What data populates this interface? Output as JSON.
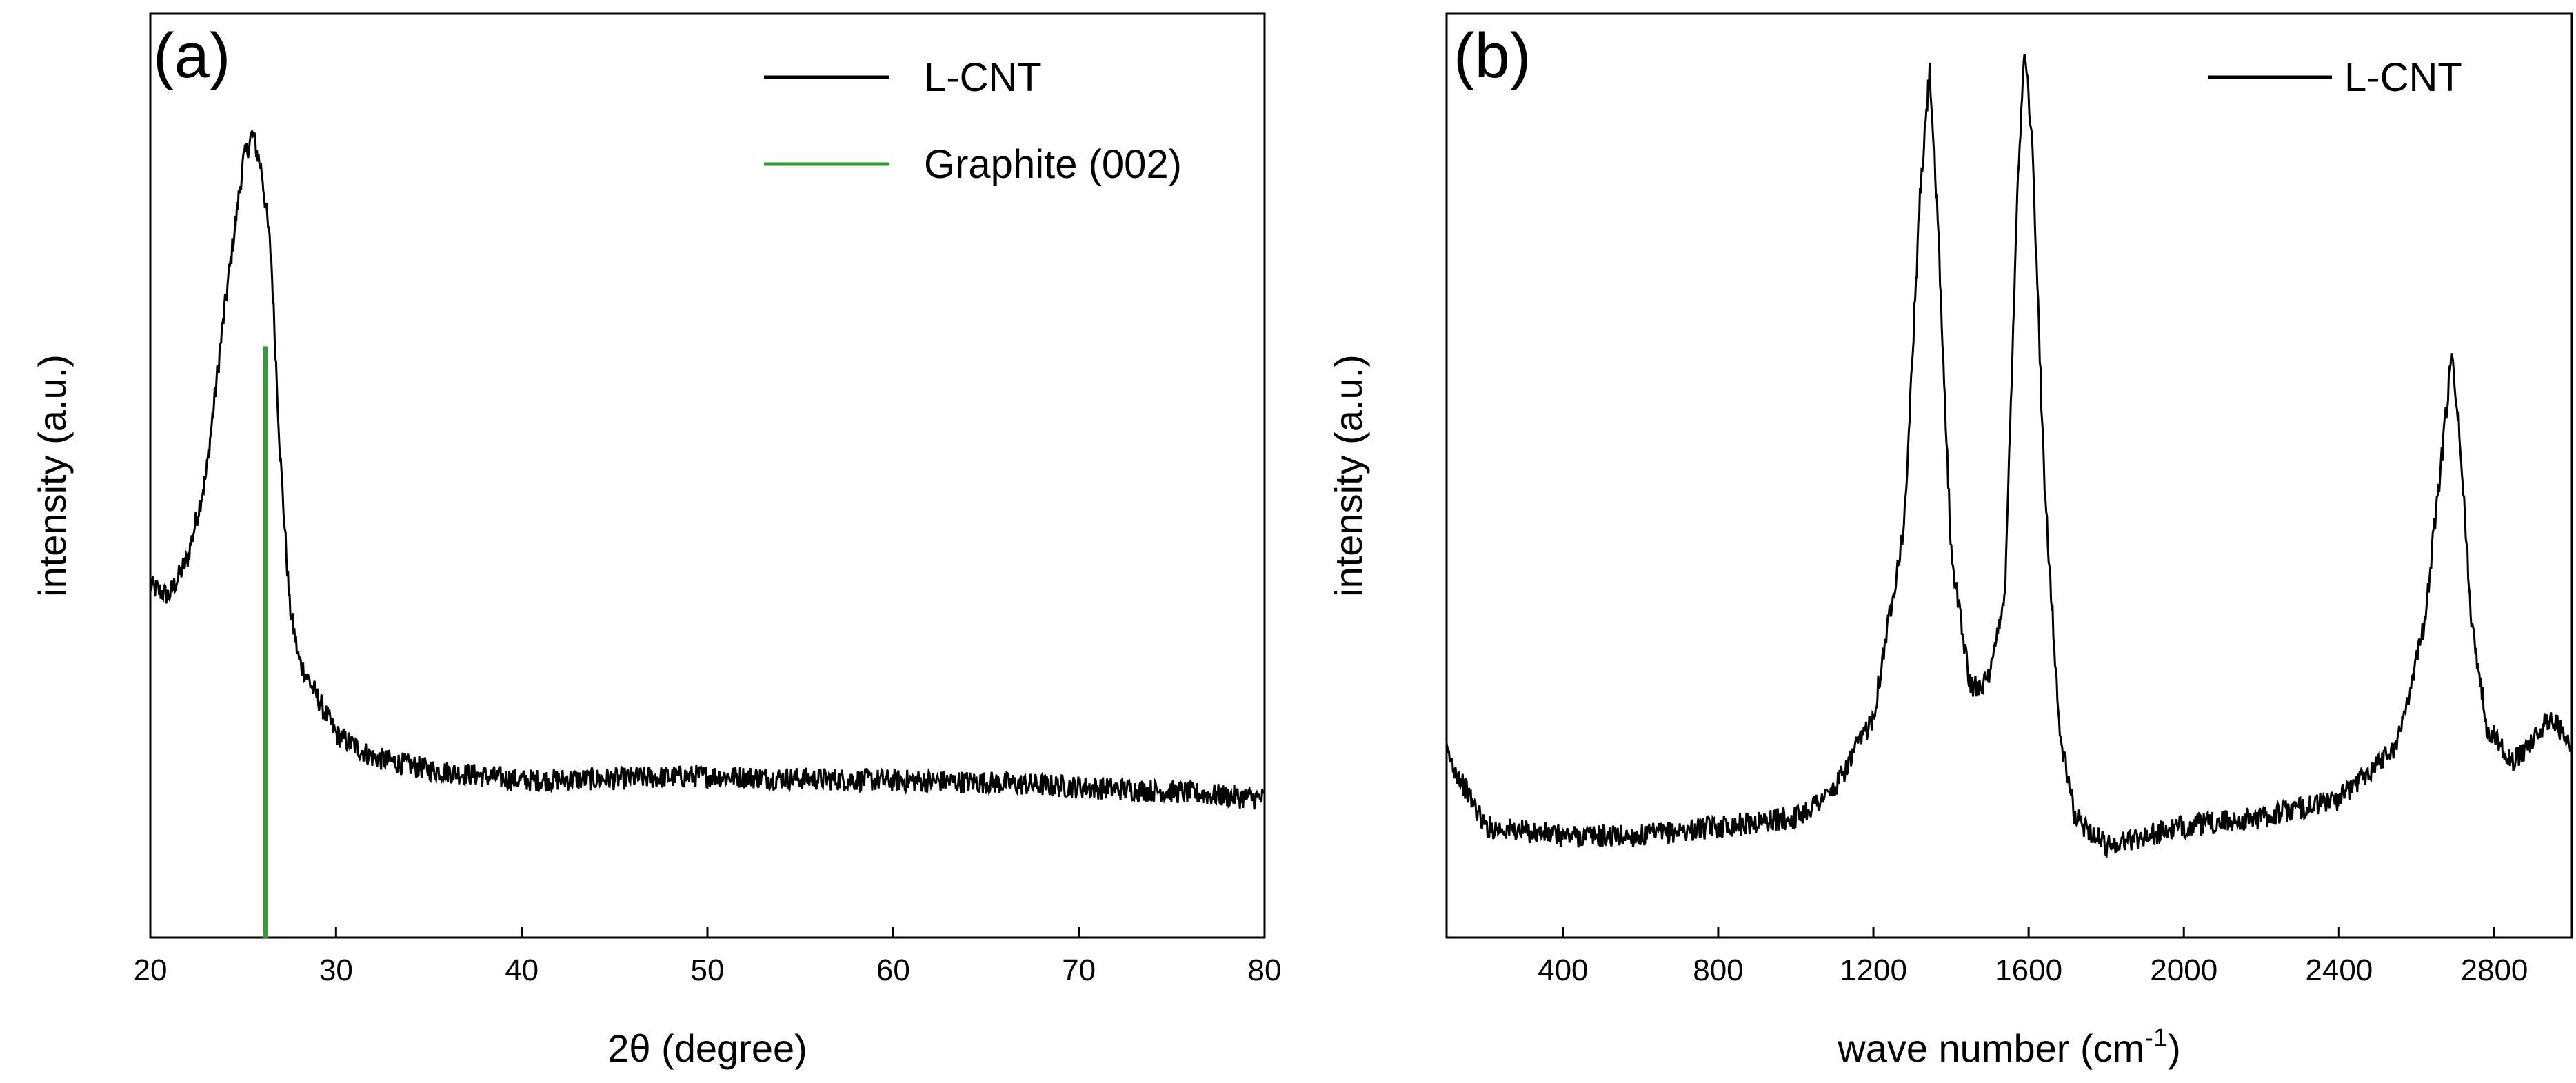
{
  "chart_data": [
    {
      "type": "line",
      "panel_label": "(a)",
      "xlabel": "2θ (degree)",
      "ylabel": "intensity (a.u.)",
      "xlim": [
        20,
        80
      ],
      "ylim": [
        0,
        1
      ],
      "x_ticks": [
        "20",
        "30",
        "40",
        "50",
        "60",
        "70",
        "80"
      ],
      "legend_position": "top-right",
      "series": [
        {
          "name": "L-CNT",
          "color": "#000000",
          "points": [
            [
              20,
              0.38
            ],
            [
              21,
              0.37
            ],
            [
              22,
              0.41
            ],
            [
              23,
              0.5
            ],
            [
              24,
              0.68
            ],
            [
              25,
              0.84
            ],
            [
              25.5,
              0.87
            ],
            [
              26,
              0.83
            ],
            [
              26.5,
              0.74
            ],
            [
              27,
              0.52
            ],
            [
              27.5,
              0.36
            ],
            [
              28,
              0.3
            ],
            [
              29,
              0.26
            ],
            [
              30,
              0.22
            ],
            [
              32,
              0.195
            ],
            [
              35,
              0.182
            ],
            [
              40,
              0.17
            ],
            [
              45,
              0.172
            ],
            [
              50,
              0.175
            ],
            [
              55,
              0.172
            ],
            [
              60,
              0.17
            ],
            [
              65,
              0.168
            ],
            [
              70,
              0.163
            ],
            [
              75,
              0.158
            ],
            [
              80,
              0.15
            ]
          ]
        },
        {
          "name": "Graphite (002)",
          "color": "#2e9e2e",
          "type": "stick",
          "x": 26.2,
          "y": 0.64
        }
      ]
    },
    {
      "type": "line",
      "panel_label": "(b)",
      "xlabel": "wave number (cm",
      "xlabel_sup": "-1",
      "xlabel_end": ")",
      "ylabel": "intensity (a.u.)",
      "xlim": [
        100,
        3000
      ],
      "ylim": [
        0,
        1
      ],
      "x_ticks": [
        "400",
        "800",
        "1200",
        "1600",
        "2000",
        "2400",
        "2800"
      ],
      "legend_position": "top-right",
      "series": [
        {
          "name": "L-CNT",
          "color": "#000000",
          "points": [
            [
              100,
              0.2
            ],
            [
              200,
              0.12
            ],
            [
              400,
              0.11
            ],
            [
              600,
              0.11
            ],
            [
              800,
              0.12
            ],
            [
              1000,
              0.13
            ],
            [
              1100,
              0.16
            ],
            [
              1200,
              0.24
            ],
            [
              1280,
              0.45
            ],
            [
              1320,
              0.8
            ],
            [
              1345,
              0.94
            ],
            [
              1365,
              0.78
            ],
            [
              1400,
              0.42
            ],
            [
              1450,
              0.27
            ],
            [
              1500,
              0.28
            ],
            [
              1540,
              0.38
            ],
            [
              1570,
              0.8
            ],
            [
              1590,
              0.97
            ],
            [
              1610,
              0.85
            ],
            [
              1640,
              0.5
            ],
            [
              1680,
              0.22
            ],
            [
              1720,
              0.13
            ],
            [
              1800,
              0.1
            ],
            [
              2000,
              0.12
            ],
            [
              2200,
              0.13
            ],
            [
              2400,
              0.15
            ],
            [
              2550,
              0.21
            ],
            [
              2620,
              0.34
            ],
            [
              2660,
              0.5
            ],
            [
              2690,
              0.63
            ],
            [
              2710,
              0.55
            ],
            [
              2740,
              0.35
            ],
            [
              2780,
              0.23
            ],
            [
              2850,
              0.19
            ],
            [
              2950,
              0.24
            ],
            [
              3000,
              0.2
            ]
          ]
        }
      ]
    }
  ]
}
